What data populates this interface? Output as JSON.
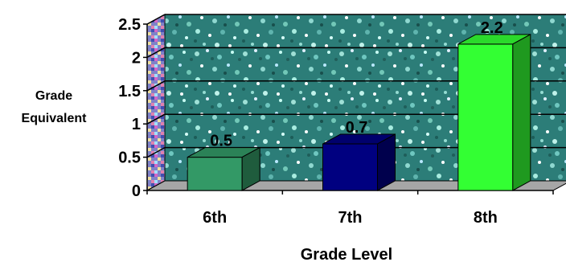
{
  "chart_data": {
    "type": "bar",
    "title": "",
    "xlabel": "Grade Level",
    "ylabel_lines": [
      "Grade",
      "Equivalent"
    ],
    "categories": [
      "6th",
      "7th",
      "8th"
    ],
    "values": [
      0.5,
      0.7,
      2.2
    ],
    "value_labels": [
      "0.5",
      "0.7",
      "2.2"
    ],
    "ylim": [
      0,
      2.5
    ],
    "yticks": [
      0,
      0.5,
      1,
      1.5,
      2,
      2.5
    ],
    "ytick_labels": [
      "0",
      "0.5",
      "1",
      "1.5",
      "2",
      "2.5"
    ],
    "grid": true,
    "three_d": true,
    "bar_colors": [
      "#339966",
      "#000080",
      "#33FF33"
    ]
  }
}
